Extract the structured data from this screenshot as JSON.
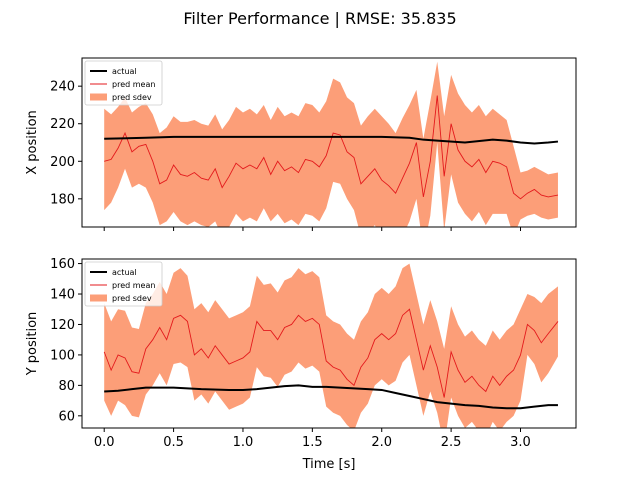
{
  "title": "Filter Performance | RMSE: 35.835",
  "chart_data": [
    {
      "type": "line",
      "ylabel": "X position",
      "xlabel": "",
      "xlim": [
        -0.16,
        3.4
      ],
      "ylim": [
        165,
        255
      ],
      "xticks": [
        0.0,
        0.5,
        1.0,
        1.5,
        2.0,
        2.5,
        3.0
      ],
      "xtick_labels_visible": false,
      "yticks": [
        180,
        200,
        220,
        240
      ],
      "ytick_labels": [
        "180",
        "200",
        "220",
        "240"
      ],
      "legend": {
        "position": "top-left",
        "entries": [
          "actual",
          "pred mean",
          "pred sdev"
        ]
      },
      "colors": {
        "actual": "#000000",
        "pred_mean": "#e31a1c",
        "pred_sdev": "#fc9e78"
      },
      "series": [
        {
          "name": "actual",
          "x": [
            0.0,
            0.3,
            0.5,
            0.8,
            1.0,
            1.2,
            1.4,
            1.6,
            1.8,
            2.0,
            2.2,
            2.3,
            2.4,
            2.6,
            2.8,
            2.9,
            3.0,
            3.1,
            3.2,
            3.27
          ],
          "y": [
            212,
            212.5,
            213,
            213,
            213,
            213,
            213,
            213,
            213,
            213,
            212.5,
            211.5,
            211,
            210,
            211.5,
            211,
            210,
            209.5,
            210,
            210.5
          ]
        },
        {
          "name": "pred mean",
          "x": [
            0.0,
            0.05,
            0.1,
            0.15,
            0.2,
            0.25,
            0.3,
            0.35,
            0.4,
            0.45,
            0.5,
            0.55,
            0.6,
            0.65,
            0.7,
            0.75,
            0.8,
            0.85,
            0.9,
            0.95,
            1.0,
            1.05,
            1.1,
            1.15,
            1.2,
            1.25,
            1.3,
            1.35,
            1.4,
            1.45,
            1.5,
            1.55,
            1.6,
            1.65,
            1.7,
            1.75,
            1.8,
            1.85,
            1.9,
            1.95,
            2.0,
            2.05,
            2.1,
            2.15,
            2.2,
            2.25,
            2.3,
            2.35,
            2.4,
            2.45,
            2.5,
            2.55,
            2.6,
            2.65,
            2.7,
            2.75,
            2.8,
            2.85,
            2.9,
            2.95,
            3.0,
            3.05,
            3.1,
            3.15,
            3.2,
            3.27
          ],
          "y": [
            200,
            201,
            207,
            215,
            205,
            208,
            209,
            200,
            188,
            190,
            198,
            193,
            192,
            194,
            191,
            190,
            196,
            186,
            192,
            199,
            196,
            198,
            196,
            202,
            193,
            200,
            195,
            197,
            194,
            201,
            200,
            197,
            203,
            215,
            214,
            205,
            202,
            188,
            192,
            196,
            190,
            187,
            183,
            191,
            199,
            210,
            181,
            200,
            235,
            192,
            220,
            206,
            200,
            197,
            201,
            194,
            200,
            199,
            197,
            183,
            180,
            183,
            185,
            182,
            181,
            182
          ]
        },
        {
          "name": "pred sdev",
          "x": [
            0.0,
            0.05,
            0.1,
            0.15,
            0.2,
            0.25,
            0.3,
            0.35,
            0.4,
            0.45,
            0.5,
            0.55,
            0.6,
            0.65,
            0.7,
            0.75,
            0.8,
            0.85,
            0.9,
            0.95,
            1.0,
            1.05,
            1.1,
            1.15,
            1.2,
            1.25,
            1.3,
            1.35,
            1.4,
            1.45,
            1.5,
            1.55,
            1.6,
            1.65,
            1.7,
            1.75,
            1.8,
            1.85,
            1.9,
            1.95,
            2.0,
            2.05,
            2.1,
            2.15,
            2.2,
            2.25,
            2.3,
            2.35,
            2.4,
            2.45,
            2.5,
            2.55,
            2.6,
            2.65,
            2.7,
            2.75,
            2.8,
            2.85,
            2.9,
            2.95,
            3.0,
            3.05,
            3.1,
            3.15,
            3.2,
            3.27
          ],
          "upper": [
            228,
            225,
            229,
            234,
            226,
            229,
            231,
            225,
            215,
            218,
            224,
            221,
            221,
            222,
            220,
            219,
            225,
            217,
            222,
            229,
            226,
            228,
            225,
            230,
            222,
            229,
            224,
            226,
            224,
            231,
            230,
            226,
            232,
            244,
            242,
            234,
            231,
            219,
            224,
            228,
            224,
            220,
            215,
            223,
            230,
            238,
            212,
            232,
            253,
            224,
            246,
            236,
            230,
            226,
            230,
            224,
            228,
            225,
            222,
            208,
            194,
            195,
            197,
            195,
            193,
            194
          ],
          "lower": [
            174,
            178,
            186,
            196,
            186,
            188,
            186,
            178,
            166,
            168,
            173,
            168,
            166,
            168,
            166,
            165,
            168,
            160,
            165,
            172,
            168,
            170,
            168,
            175,
            168,
            172,
            167,
            169,
            166,
            172,
            171,
            168,
            175,
            189,
            188,
            180,
            174,
            160,
            162,
            166,
            160,
            156,
            152,
            160,
            168,
            180,
            153,
            171,
            210,
            163,
            193,
            178,
            172,
            168,
            173,
            166,
            172,
            172,
            172,
            160,
            169,
            171,
            172,
            170,
            169,
            170
          ]
        }
      ]
    },
    {
      "type": "line",
      "ylabel": "Y position",
      "xlabel": "Time [s]",
      "xlim": [
        -0.16,
        3.4
      ],
      "ylim": [
        52,
        163
      ],
      "xticks": [
        0.0,
        0.5,
        1.0,
        1.5,
        2.0,
        2.5,
        3.0
      ],
      "xtick_labels": [
        "0.0",
        "0.5",
        "1.0",
        "1.5",
        "2.0",
        "2.5",
        "3.0"
      ],
      "yticks": [
        60,
        80,
        100,
        120,
        140,
        160
      ],
      "ytick_labels": [
        "60",
        "80",
        "100",
        "120",
        "140",
        "160"
      ],
      "legend": {
        "position": "top-left",
        "entries": [
          "actual",
          "pred mean",
          "pred sdev"
        ]
      },
      "colors": {
        "actual": "#000000",
        "pred_mean": "#e31a1c",
        "pred_sdev": "#fc9e78"
      },
      "series": [
        {
          "name": "actual",
          "x": [
            0.0,
            0.1,
            0.2,
            0.3,
            0.5,
            0.7,
            0.9,
            1.0,
            1.1,
            1.2,
            1.3,
            1.4,
            1.5,
            1.6,
            1.7,
            1.8,
            1.9,
            2.0,
            2.1,
            2.2,
            2.3,
            2.4,
            2.5,
            2.6,
            2.7,
            2.8,
            2.9,
            3.0,
            3.1,
            3.2,
            3.27
          ],
          "y": [
            76,
            76.5,
            77.5,
            78.5,
            78.5,
            77.5,
            77,
            77,
            77.5,
            78.5,
            79.5,
            80,
            79,
            79,
            78.5,
            78,
            77.5,
            77,
            75,
            73,
            71,
            69,
            68,
            67,
            66.5,
            65.5,
            65,
            65,
            66,
            67,
            67
          ]
        },
        {
          "name": "pred mean",
          "x": [
            0.0,
            0.05,
            0.1,
            0.15,
            0.2,
            0.25,
            0.3,
            0.35,
            0.4,
            0.45,
            0.5,
            0.55,
            0.6,
            0.65,
            0.7,
            0.75,
            0.8,
            0.85,
            0.9,
            0.95,
            1.0,
            1.05,
            1.1,
            1.15,
            1.2,
            1.25,
            1.3,
            1.35,
            1.4,
            1.45,
            1.5,
            1.55,
            1.6,
            1.65,
            1.7,
            1.75,
            1.8,
            1.85,
            1.9,
            1.95,
            2.0,
            2.05,
            2.1,
            2.15,
            2.2,
            2.25,
            2.3,
            2.35,
            2.4,
            2.45,
            2.5,
            2.55,
            2.6,
            2.65,
            2.7,
            2.75,
            2.8,
            2.85,
            2.9,
            2.95,
            3.0,
            3.05,
            3.1,
            3.15,
            3.2,
            3.27
          ],
          "y": [
            102,
            90,
            100,
            98,
            89,
            88,
            104,
            110,
            118,
            110,
            124,
            126,
            122,
            100,
            104,
            98,
            106,
            100,
            94,
            96,
            98,
            102,
            122,
            116,
            116,
            110,
            118,
            120,
            126,
            122,
            124,
            120,
            96,
            92,
            90,
            84,
            80,
            92,
            98,
            110,
            114,
            110,
            114,
            126,
            130,
            110,
            90,
            106,
            92,
            72,
            102,
            90,
            82,
            86,
            80,
            76,
            86,
            80,
            86,
            90,
            100,
            120,
            116,
            108,
            114,
            122
          ]
        },
        {
          "name": "pred sdev",
          "x": [
            0.0,
            0.05,
            0.1,
            0.15,
            0.2,
            0.25,
            0.3,
            0.35,
            0.4,
            0.45,
            0.5,
            0.55,
            0.6,
            0.65,
            0.7,
            0.75,
            0.8,
            0.85,
            0.9,
            0.95,
            1.0,
            1.05,
            1.1,
            1.15,
            1.2,
            1.25,
            1.3,
            1.35,
            1.4,
            1.45,
            1.5,
            1.55,
            1.6,
            1.65,
            1.7,
            1.75,
            1.8,
            1.85,
            1.9,
            1.95,
            2.0,
            2.05,
            2.1,
            2.15,
            2.2,
            2.25,
            2.3,
            2.35,
            2.4,
            2.45,
            2.5,
            2.55,
            2.6,
            2.65,
            2.7,
            2.75,
            2.8,
            2.85,
            2.9,
            2.95,
            3.0,
            3.05,
            3.1,
            3.15,
            3.2,
            3.27
          ],
          "upper": [
            134,
            122,
            130,
            129,
            118,
            117,
            134,
            140,
            148,
            140,
            154,
            157,
            152,
            130,
            134,
            128,
            136,
            130,
            124,
            126,
            128,
            132,
            152,
            146,
            147,
            141,
            149,
            151,
            157,
            153,
            155,
            151,
            126,
            122,
            120,
            114,
            110,
            122,
            128,
            140,
            144,
            140,
            145,
            157,
            160,
            140,
            120,
            136,
            122,
            104,
            132,
            120,
            112,
            116,
            110,
            106,
            116,
            110,
            116,
            120,
            130,
            140,
            138,
            134,
            140,
            145
          ],
          "lower": [
            70,
            60,
            70,
            67,
            60,
            59,
            74,
            80,
            88,
            80,
            94,
            95,
            92,
            70,
            74,
            68,
            76,
            70,
            64,
            66,
            68,
            72,
            92,
            86,
            85,
            79,
            87,
            89,
            95,
            91,
            93,
            89,
            66,
            62,
            60,
            54,
            50,
            62,
            68,
            80,
            84,
            80,
            83,
            95,
            100,
            80,
            60,
            76,
            62,
            40,
            72,
            60,
            52,
            56,
            50,
            46,
            56,
            50,
            56,
            60,
            70,
            100,
            94,
            82,
            88,
            99
          ]
        }
      ]
    }
  ]
}
